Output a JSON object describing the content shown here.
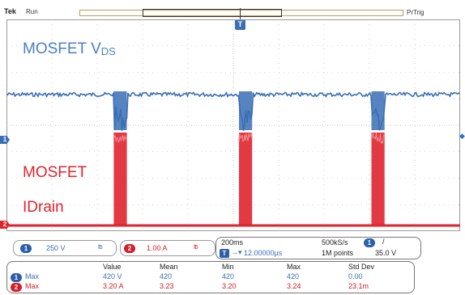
{
  "header": {
    "brand": "Tek",
    "run_state": "Run",
    "trigger_mode": "PrTrig",
    "trigger_marker": "T"
  },
  "channels": {
    "ch1": {
      "number": "1",
      "label_main": "MOSFET V",
      "label_sub": "DS",
      "color": "#3a6fb5",
      "scale": "250 V",
      "coupling": "℔"
    },
    "ch2": {
      "number": "2",
      "label_line1": "MOSFET",
      "label_line2": "IDrain",
      "color": "#e0242d",
      "scale": "1.00 A",
      "coupling": "℔"
    }
  },
  "timebase": {
    "scale": "200ms",
    "position": "12.00000µs",
    "sample_rate": "500kS/s",
    "record_length": "1M points",
    "trigger_channel": "1",
    "trigger_slope": "/",
    "trigger_level": "35.0 V"
  },
  "measurements": {
    "headers": [
      "Value",
      "Mean",
      "Min",
      "Max",
      "Std Dev"
    ],
    "rows": [
      {
        "channel": "1",
        "name": "Max",
        "cells": [
          "420 V",
          "420",
          "420",
          "420",
          "0.00"
        ]
      },
      {
        "channel": "2",
        "name": "Max",
        "cells": [
          "3.20 A",
          "3.23",
          "3.20",
          "3.24",
          "23.1m"
        ]
      }
    ]
  },
  "colors": {
    "ch1": "#3a6fb5",
    "ch2": "#e0242d",
    "grid": "#b0b0b0"
  },
  "waveform": {
    "pulse_count": 3,
    "pulse_centers_fraction": [
      0.251,
      0.527,
      0.819
    ],
    "pulse_width_fraction": 0.029
  }
}
